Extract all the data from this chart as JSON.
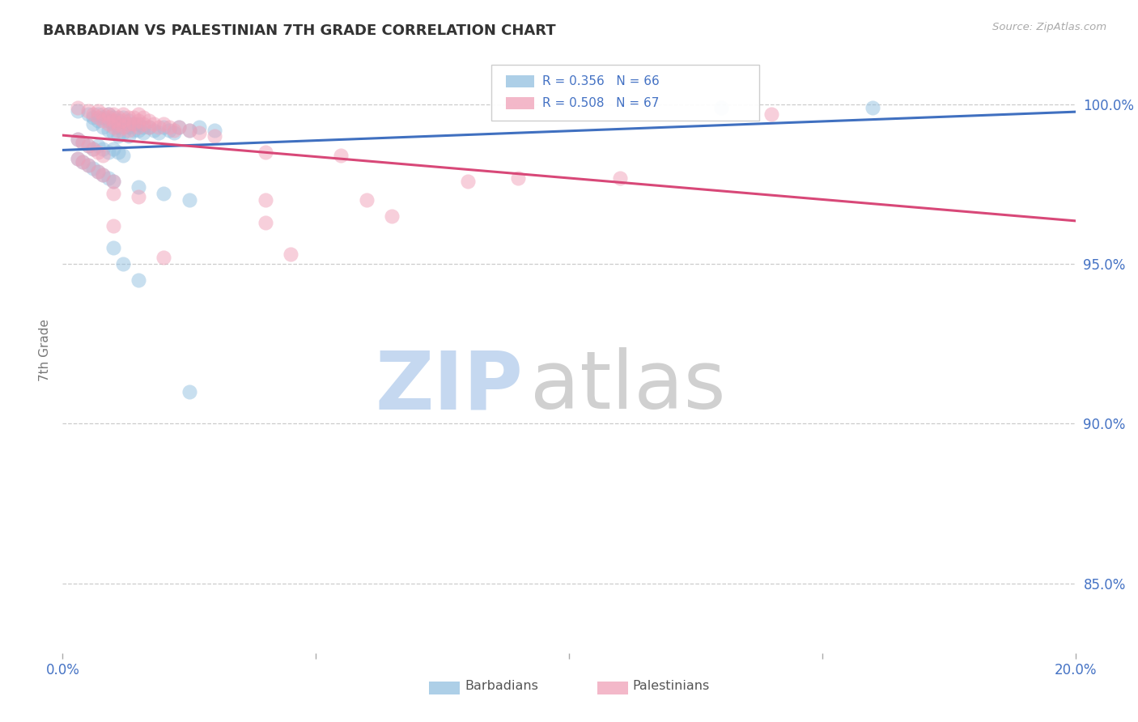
{
  "title": "BARBADIAN VS PALESTINIAN 7TH GRADE CORRELATION CHART",
  "source": "Source: ZipAtlas.com",
  "ylabel": "7th Grade",
  "ytick_labels": [
    "100.0%",
    "95.0%",
    "90.0%",
    "85.0%"
  ],
  "ytick_values": [
    1.0,
    0.95,
    0.9,
    0.85
  ],
  "xlim": [
    0.0,
    0.2
  ],
  "ylim": [
    0.828,
    1.018
  ],
  "legend_blue": "R = 0.356   N = 66",
  "legend_pink": "R = 0.508   N = 67",
  "legend_label_blue": "Barbadians",
  "legend_label_pink": "Palestinians",
  "R_blue": 0.356,
  "N_blue": 66,
  "R_pink": 0.508,
  "N_pink": 67,
  "blue_color": "#92c0e0",
  "pink_color": "#f0a0b8",
  "blue_line_color": "#4070c0",
  "pink_line_color": "#d84878",
  "background_color": "#ffffff",
  "grid_color": "#cccccc",
  "title_color": "#333333",
  "axis_label_color": "#777777",
  "source_color": "#aaaaaa",
  "ytick_color": "#4472c4",
  "blue_scatter": [
    [
      0.003,
      0.998
    ],
    [
      0.005,
      0.997
    ],
    [
      0.006,
      0.996
    ],
    [
      0.006,
      0.994
    ],
    [
      0.007,
      0.997
    ],
    [
      0.007,
      0.995
    ],
    [
      0.008,
      0.996
    ],
    [
      0.008,
      0.993
    ],
    [
      0.009,
      0.997
    ],
    [
      0.009,
      0.995
    ],
    [
      0.009,
      0.992
    ],
    [
      0.01,
      0.996
    ],
    [
      0.01,
      0.994
    ],
    [
      0.01,
      0.991
    ],
    [
      0.011,
      0.995
    ],
    [
      0.011,
      0.993
    ],
    [
      0.011,
      0.99
    ],
    [
      0.012,
      0.996
    ],
    [
      0.012,
      0.994
    ],
    [
      0.012,
      0.991
    ],
    [
      0.013,
      0.995
    ],
    [
      0.013,
      0.993
    ],
    [
      0.013,
      0.99
    ],
    [
      0.014,
      0.994
    ],
    [
      0.014,
      0.992
    ],
    [
      0.015,
      0.994
    ],
    [
      0.015,
      0.992
    ],
    [
      0.016,
      0.993
    ],
    [
      0.016,
      0.991
    ],
    [
      0.017,
      0.993
    ],
    [
      0.018,
      0.992
    ],
    [
      0.019,
      0.991
    ],
    [
      0.02,
      0.993
    ],
    [
      0.021,
      0.992
    ],
    [
      0.022,
      0.991
    ],
    [
      0.023,
      0.993
    ],
    [
      0.025,
      0.992
    ],
    [
      0.027,
      0.993
    ],
    [
      0.03,
      0.992
    ],
    [
      0.003,
      0.989
    ],
    [
      0.004,
      0.988
    ],
    [
      0.005,
      0.987
    ],
    [
      0.006,
      0.986
    ],
    [
      0.007,
      0.987
    ],
    [
      0.008,
      0.986
    ],
    [
      0.009,
      0.985
    ],
    [
      0.01,
      0.986
    ],
    [
      0.011,
      0.985
    ],
    [
      0.012,
      0.984
    ],
    [
      0.003,
      0.983
    ],
    [
      0.004,
      0.982
    ],
    [
      0.005,
      0.981
    ],
    [
      0.006,
      0.98
    ],
    [
      0.007,
      0.979
    ],
    [
      0.008,
      0.978
    ],
    [
      0.009,
      0.977
    ],
    [
      0.01,
      0.976
    ],
    [
      0.015,
      0.974
    ],
    [
      0.02,
      0.972
    ],
    [
      0.025,
      0.97
    ],
    [
      0.01,
      0.955
    ],
    [
      0.012,
      0.95
    ],
    [
      0.015,
      0.945
    ],
    [
      0.025,
      0.91
    ],
    [
      0.13,
      0.999
    ],
    [
      0.16,
      0.999
    ]
  ],
  "pink_scatter": [
    [
      0.003,
      0.999
    ],
    [
      0.005,
      0.998
    ],
    [
      0.006,
      0.997
    ],
    [
      0.007,
      0.998
    ],
    [
      0.007,
      0.996
    ],
    [
      0.008,
      0.997
    ],
    [
      0.008,
      0.995
    ],
    [
      0.009,
      0.997
    ],
    [
      0.009,
      0.996
    ],
    [
      0.009,
      0.994
    ],
    [
      0.01,
      0.997
    ],
    [
      0.01,
      0.995
    ],
    [
      0.01,
      0.993
    ],
    [
      0.011,
      0.996
    ],
    [
      0.011,
      0.994
    ],
    [
      0.011,
      0.992
    ],
    [
      0.012,
      0.997
    ],
    [
      0.012,
      0.995
    ],
    [
      0.012,
      0.993
    ],
    [
      0.013,
      0.996
    ],
    [
      0.013,
      0.994
    ],
    [
      0.013,
      0.992
    ],
    [
      0.014,
      0.996
    ],
    [
      0.014,
      0.994
    ],
    [
      0.015,
      0.997
    ],
    [
      0.015,
      0.995
    ],
    [
      0.015,
      0.993
    ],
    [
      0.016,
      0.996
    ],
    [
      0.016,
      0.994
    ],
    [
      0.017,
      0.995
    ],
    [
      0.017,
      0.993
    ],
    [
      0.018,
      0.994
    ],
    [
      0.019,
      0.993
    ],
    [
      0.02,
      0.994
    ],
    [
      0.021,
      0.993
    ],
    [
      0.022,
      0.992
    ],
    [
      0.023,
      0.993
    ],
    [
      0.025,
      0.992
    ],
    [
      0.027,
      0.991
    ],
    [
      0.03,
      0.99
    ],
    [
      0.003,
      0.989
    ],
    [
      0.004,
      0.988
    ],
    [
      0.005,
      0.987
    ],
    [
      0.006,
      0.986
    ],
    [
      0.007,
      0.985
    ],
    [
      0.008,
      0.984
    ],
    [
      0.003,
      0.983
    ],
    [
      0.004,
      0.982
    ],
    [
      0.005,
      0.981
    ],
    [
      0.007,
      0.979
    ],
    [
      0.008,
      0.978
    ],
    [
      0.01,
      0.976
    ],
    [
      0.04,
      0.985
    ],
    [
      0.055,
      0.984
    ],
    [
      0.01,
      0.972
    ],
    [
      0.015,
      0.971
    ],
    [
      0.04,
      0.97
    ],
    [
      0.06,
      0.97
    ],
    [
      0.01,
      0.962
    ],
    [
      0.04,
      0.963
    ],
    [
      0.065,
      0.965
    ],
    [
      0.02,
      0.952
    ],
    [
      0.045,
      0.953
    ],
    [
      0.08,
      0.976
    ],
    [
      0.09,
      0.977
    ],
    [
      0.11,
      0.977
    ],
    [
      0.14,
      0.997
    ]
  ]
}
